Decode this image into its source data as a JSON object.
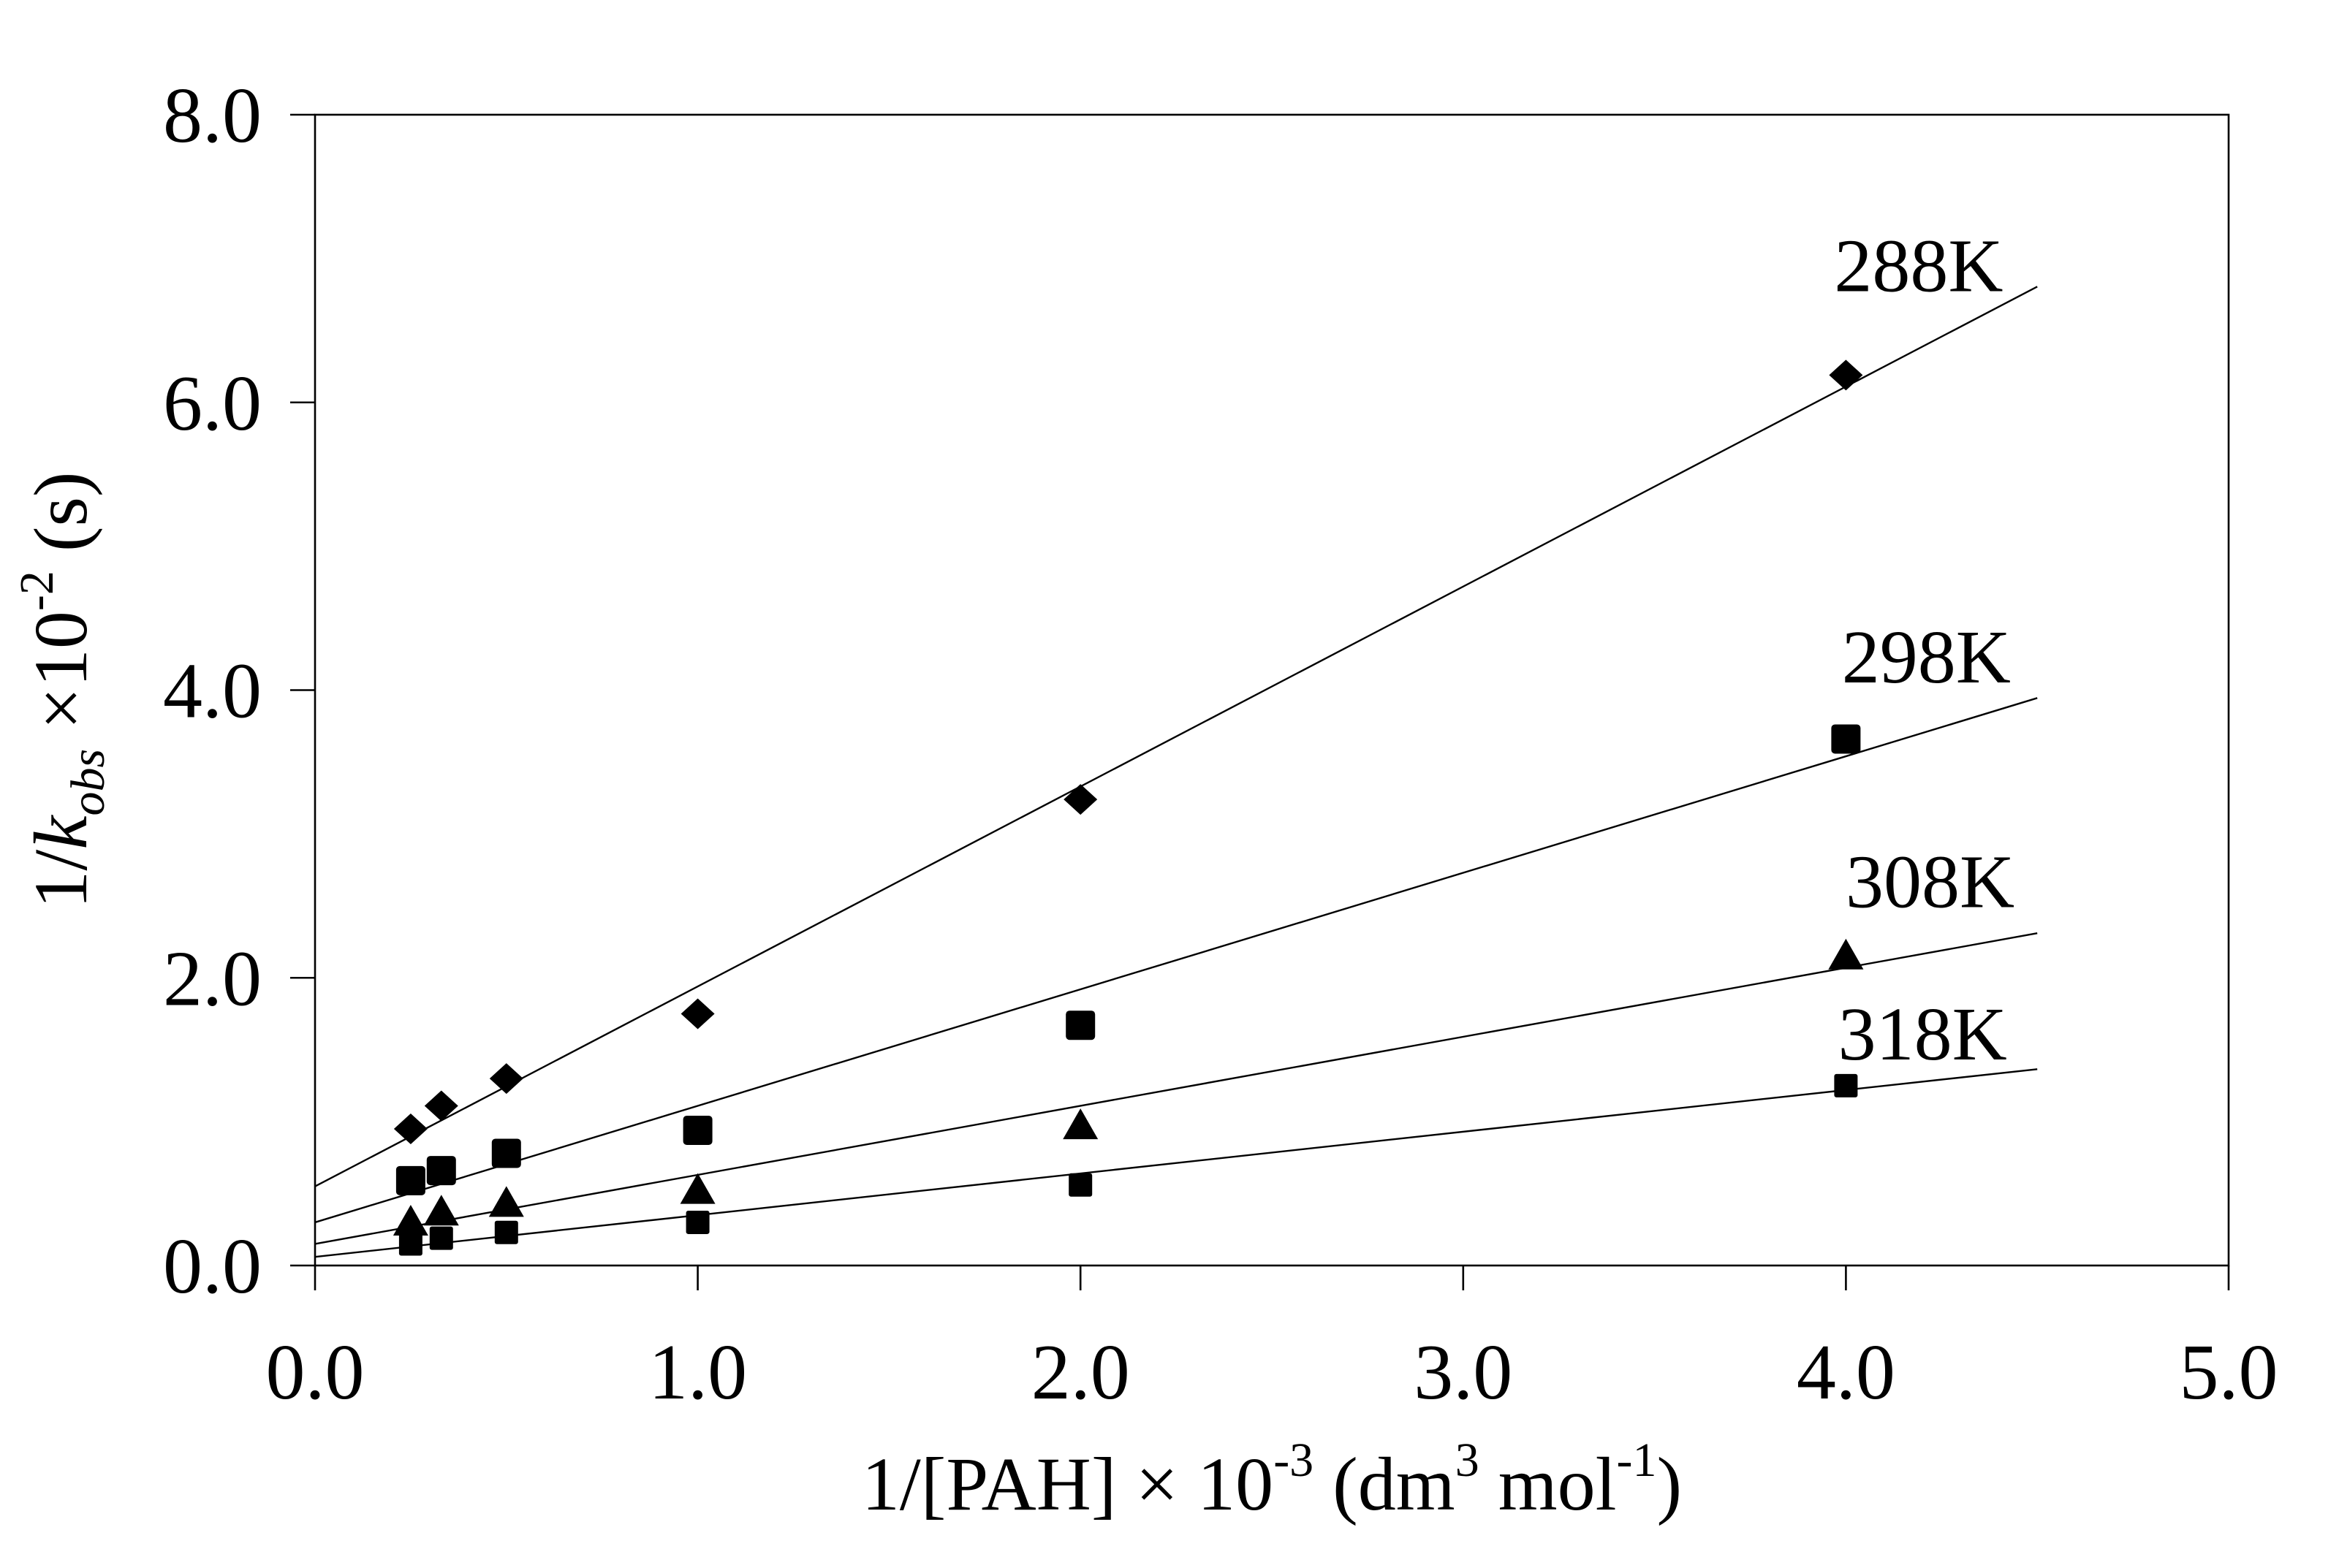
{
  "figure": {
    "background": "#ffffff",
    "ink": "#000000",
    "marker_color": "#000000"
  },
  "chart_data": {
    "type": "scatter",
    "title": "",
    "xlabel_parts": [
      {
        "t": "1/[PAH] "
      },
      {
        "t": "× 10"
      },
      {
        "t": "-3",
        "style": "sup"
      },
      {
        "t": " (dm"
      },
      {
        "t": "3",
        "style": "sup"
      },
      {
        "t": " mol"
      },
      {
        "t": "-1",
        "style": "sup"
      },
      {
        "t": ")"
      }
    ],
    "ylabel_parts": [
      {
        "t": "1/"
      },
      {
        "t": "k",
        "style": "italic"
      },
      {
        "t": "obs",
        "style": "italic-sub"
      },
      {
        "t": " ×10"
      },
      {
        "t": "-2",
        "style": "sup"
      },
      {
        "t": " (s)"
      }
    ],
    "xlim": [
      0.0,
      5.0
    ],
    "ylim": [
      0.0,
      8.0
    ],
    "x_ticks": [
      "0.0",
      "1.0",
      "2.0",
      "3.0",
      "4.0",
      "5.0"
    ],
    "y_ticks": [
      "0.0",
      "2.0",
      "4.0",
      "6.0",
      "8.0"
    ],
    "grid": false,
    "legend": "inline-labels-right",
    "x": [
      0.25,
      0.33,
      0.5,
      1.0,
      2.0,
      4.0
    ],
    "series": [
      {
        "name": "288K",
        "marker": "diamond",
        "values": [
          0.95,
          1.11,
          1.3,
          1.75,
          3.24,
          6.19
        ],
        "fit": {
          "intercept": 0.55,
          "slope": 1.39,
          "x_start": 0.0,
          "x_end": 4.5
        },
        "label_pos": {
          "x": 4.19,
          "y": 6.95
        }
      },
      {
        "name": "298K",
        "marker": "square",
        "values": [
          0.59,
          0.66,
          0.78,
          0.94,
          1.67,
          3.66
        ],
        "fit": {
          "intercept": 0.3,
          "slope": 0.81,
          "x_start": 0.0,
          "x_end": 4.5
        },
        "label_pos": {
          "x": 4.21,
          "y": 4.23
        }
      },
      {
        "name": "308K",
        "marker": "triangle",
        "values": [
          0.31,
          0.38,
          0.44,
          0.53,
          0.98,
          2.16
        ],
        "fit": {
          "intercept": 0.15,
          "slope": 0.48,
          "x_start": 0.0,
          "x_end": 4.5
        },
        "label_pos": {
          "x": 4.22,
          "y": 2.67
        }
      },
      {
        "name": "318K",
        "marker": "small-square",
        "values": [
          0.15,
          0.19,
          0.23,
          0.3,
          0.56,
          1.25
        ],
        "fit": {
          "intercept": 0.06,
          "slope": 0.29,
          "x_start": 0.0,
          "x_end": 4.5
        },
        "label_pos": {
          "x": 4.2,
          "y": 1.61
        }
      }
    ]
  }
}
